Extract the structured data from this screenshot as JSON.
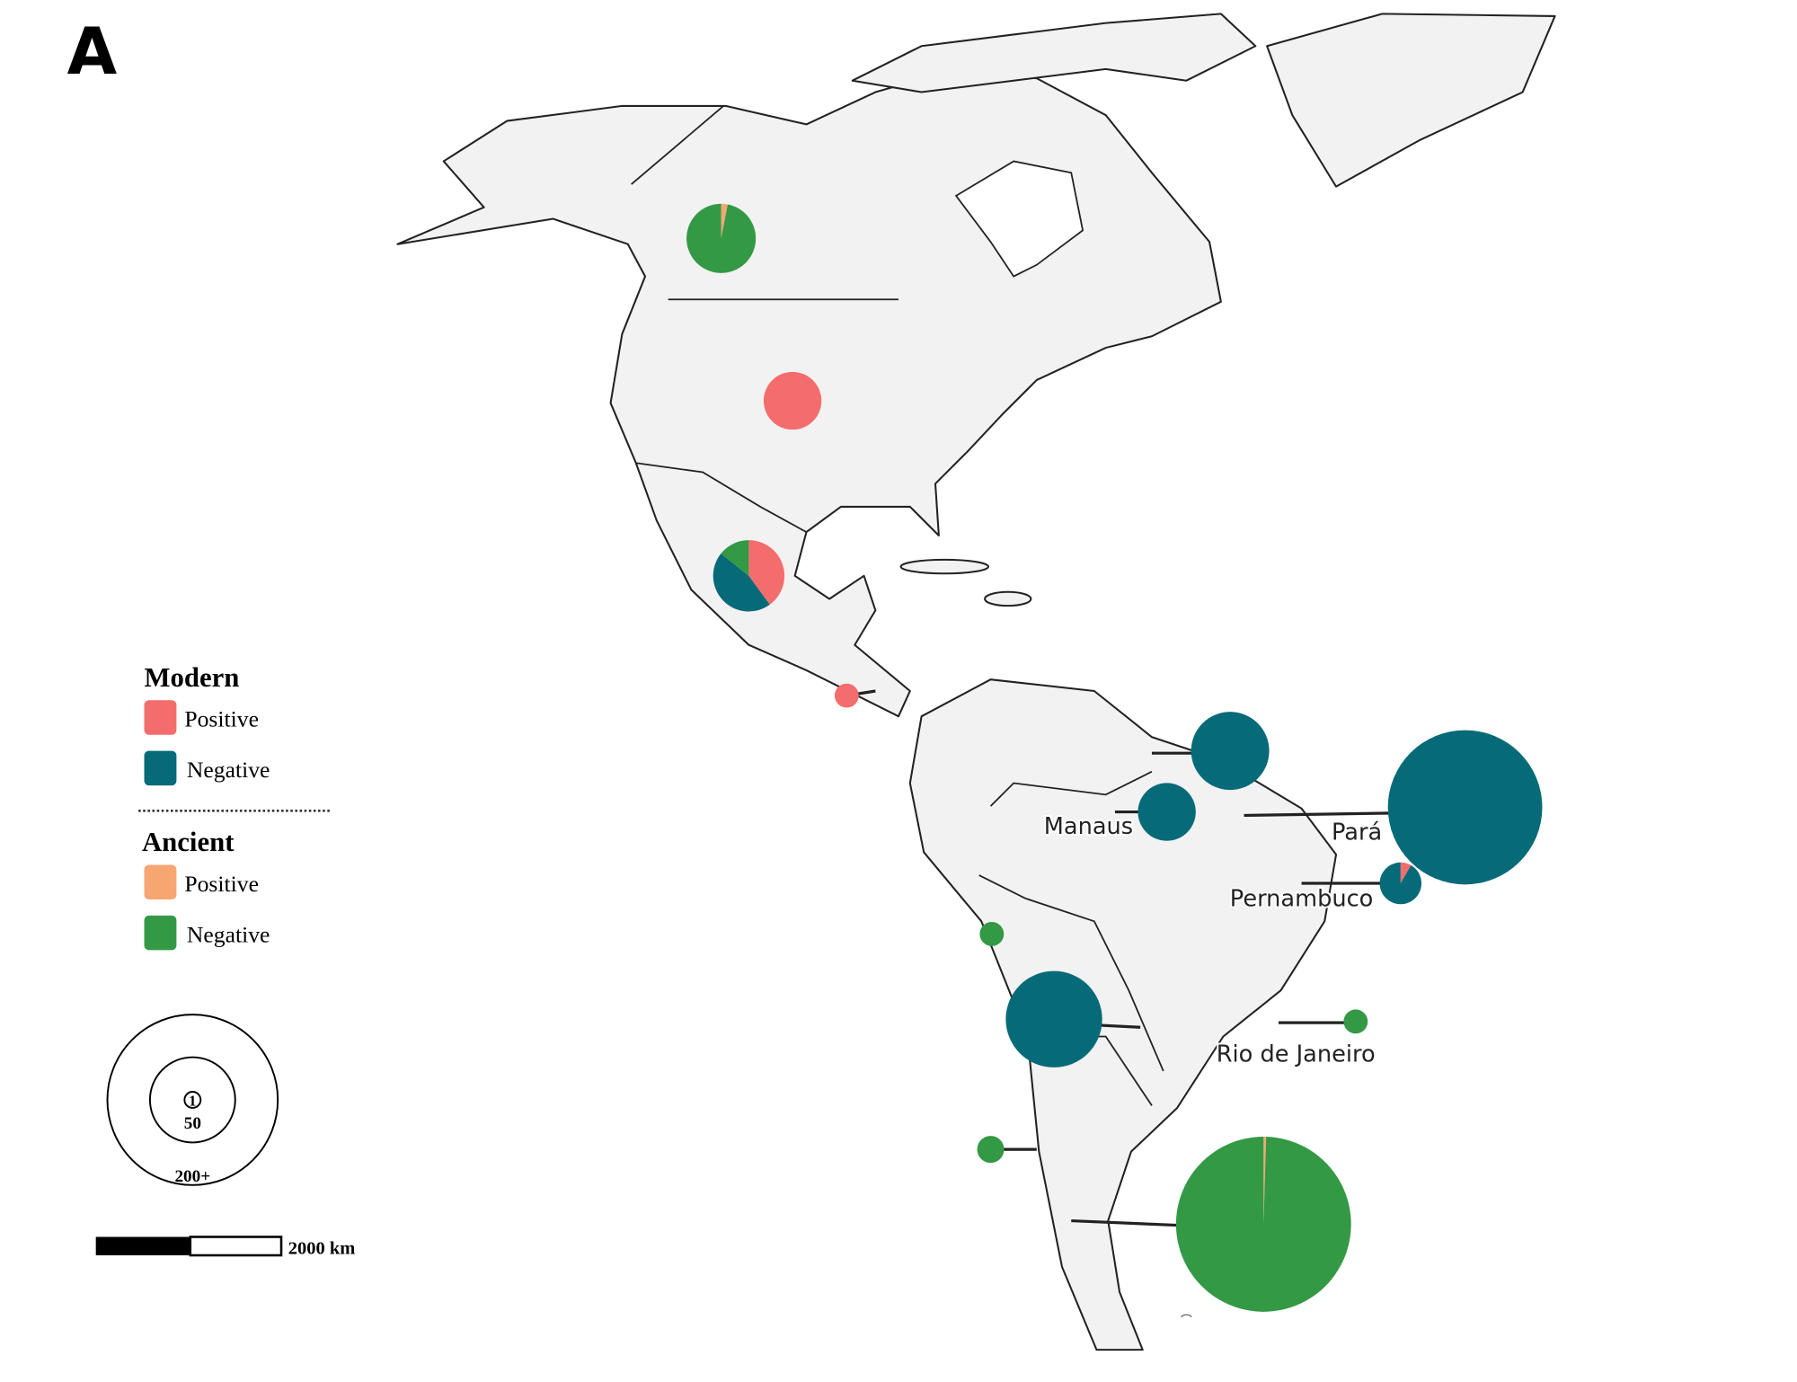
{
  "panel_label": "A",
  "legend": {
    "modern": {
      "title": "Modern",
      "positive": "Positive",
      "negative": "Negative"
    },
    "ancient": {
      "title": "Ancient",
      "positive": "Positive",
      "negative": "Negative"
    },
    "colors": {
      "modern_positive": "#f46d6d",
      "modern_negative": "#076a78",
      "ancient_positive": "#f7a672",
      "ancient_negative": "#339944"
    }
  },
  "size_legend": [
    1,
    50,
    {
      "value": 200,
      "label": "200+"
    }
  ],
  "scale_bar": "2000 km",
  "sites": [
    {
      "ancient_positive": 1,
      "ancient_negative": 32
    },
    {
      "modern_positive": 23
    },
    {
      "modern_positive": 14,
      "modern_negative": 16,
      "ancient_negative": 5
    },
    {
      "modern_positive": 4
    },
    {
      "modern_negative": 42
    },
    {
      "name": "Manaus",
      "modern_negative": 23
    },
    {
      "name": "Pará",
      "modern_negative": 164
    },
    {
      "name": "Pernambuco",
      "modern_positive": 1,
      "modern_negative": 11
    },
    {
      "ancient_negative": 4
    },
    {
      "modern_negative": 64
    },
    {
      "name": "Rio de Janeiro",
      "ancient_negative": 4
    },
    {
      "ancient_negative": 5
    },
    {
      "ancient_positive": 1,
      "ancient_negative": 210
    }
  ]
}
